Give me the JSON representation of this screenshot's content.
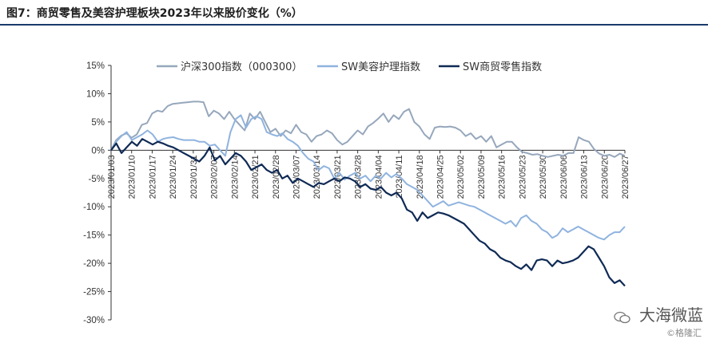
{
  "title": "图7：商贸零售及美容护理板块2023年以来股价变化（%）",
  "watermark": {
    "name": "大海微蓝",
    "sub": "©格隆汇"
  },
  "chart_data": {
    "type": "line",
    "ylim": [
      -30,
      15
    ],
    "yticks": [
      "15%",
      "10%",
      "5%",
      "0%",
      "-5%",
      "-10%",
      "-15%",
      "-20%",
      "-25%",
      "-30%"
    ],
    "ytick_values": [
      15,
      10,
      5,
      0,
      -5,
      -10,
      -15,
      -20,
      -25,
      -30
    ],
    "xticks": [
      "2023/01/03",
      "2023/01/10",
      "2023/01/17",
      "2023/01/24",
      "2023/01/31",
      "2023/02/07",
      "2023/02/14",
      "2023/02/21",
      "2023/02/28",
      "2023/03/07",
      "2023/03/14",
      "2023/03/21",
      "2023/03/28",
      "2023/04/04",
      "2023/04/11",
      "2023/04/18",
      "2023/04/25",
      "2023/05/02",
      "2023/05/09",
      "2023/05/16",
      "2023/05/23",
      "2023/05/30",
      "2023/06/06",
      "2023/06/13",
      "2023/06/20",
      "2023/06/27"
    ],
    "legend_position": "top",
    "grid": false,
    "series": [
      {
        "name": "沪深300指数（000300）",
        "color": "#96a7bc",
        "values": [
          0.0,
          1.8,
          2.6,
          3.0,
          2.2,
          2.8,
          4.5,
          4.8,
          6.5,
          7.0,
          6.8,
          7.8,
          8.2,
          8.3,
          8.4,
          8.5,
          8.6,
          8.6,
          8.5,
          6.0,
          7.0,
          6.5,
          5.5,
          6.8,
          5.5,
          4.5,
          3.5,
          6.5,
          5.5,
          6.8,
          5.0,
          3.2,
          3.8,
          2.5,
          3.5,
          3.0,
          4.5,
          3.2,
          2.8,
          1.5,
          2.5,
          2.8,
          3.5,
          3.0,
          1.8,
          1.0,
          1.5,
          2.5,
          3.5,
          2.8,
          4.2,
          4.8,
          5.6,
          6.5,
          5.0,
          6.2,
          5.5,
          6.8,
          7.3,
          5.0,
          4.2,
          2.8,
          2.0,
          4.0,
          4.2,
          4.1,
          4.2,
          4.0,
          3.5,
          2.5,
          3.0,
          2.0,
          2.5,
          1.5,
          2.5,
          0.5,
          1.0,
          1.5,
          1.5,
          0.5,
          -0.3,
          -0.5,
          -0.8,
          -0.7,
          -1.0,
          -1.2,
          -1.0,
          -0.8,
          -1.0,
          -0.5,
          -0.5,
          2.3,
          1.8,
          1.5,
          0.2,
          -0.6,
          -1.0,
          -0.8,
          -1.2,
          -0.6,
          -1.0
        ]
      },
      {
        "name": "SW美容护理指数",
        "color": "#8fb3df",
        "values": [
          0.0,
          1.5,
          2.5,
          3.2,
          1.8,
          2.3,
          2.8,
          3.5,
          2.8,
          1.5,
          2.0,
          2.2,
          2.3,
          2.0,
          1.8,
          1.8,
          1.8,
          1.5,
          1.5,
          0.8,
          1.0,
          0.0,
          -1.0,
          3.2,
          5.5,
          6.2,
          4.0,
          5.5,
          6.0,
          5.5,
          3.2,
          2.8,
          2.5,
          3.0,
          2.0,
          1.5,
          0.8,
          -0.5,
          -1.5,
          -2.0,
          -3.5,
          -2.8,
          -3.2,
          -5.0,
          -4.0,
          -5.2,
          -4.5,
          -4.0,
          -5.0,
          -4.5,
          -5.5,
          -4.5,
          -5.0,
          -4.0,
          -4.8,
          -4.2,
          -5.0,
          -6.0,
          -6.5,
          -7.0,
          -8.0,
          -9.0,
          -10.0,
          -9.5,
          -9.0,
          -9.8,
          -9.5,
          -9.2,
          -9.5,
          -9.8,
          -10.0,
          -10.5,
          -11.0,
          -11.5,
          -12.0,
          -12.5,
          -13.0,
          -12.5,
          -13.5,
          -12.0,
          -11.5,
          -12.5,
          -13.0,
          -14.0,
          -14.5,
          -15.5,
          -15.0,
          -13.8,
          -14.5,
          -14.0,
          -13.5,
          -14.0,
          -14.5,
          -15.0,
          -15.5,
          -15.8,
          -15.0,
          -14.5,
          -14.5,
          -13.5
        ]
      },
      {
        "name": "SW商贸零售指数",
        "color": "#0f2a55",
        "values": [
          0.0,
          1.2,
          -0.5,
          0.5,
          1.5,
          0.8,
          2.0,
          1.5,
          1.0,
          1.5,
          1.2,
          0.8,
          0.5,
          0.0,
          -0.5,
          -1.0,
          -1.5,
          -2.0,
          -1.0,
          0.5,
          -1.8,
          -1.0,
          -2.5,
          -1.5,
          -0.5,
          -1.0,
          -2.0,
          -3.5,
          -3.0,
          -2.5,
          -3.5,
          -4.0,
          -3.5,
          -5.0,
          -4.5,
          -5.8,
          -5.0,
          -5.5,
          -6.0,
          -6.5,
          -5.8,
          -6.0,
          -5.5,
          -5.0,
          -5.5,
          -4.8,
          -5.0,
          -5.5,
          -6.5,
          -6.0,
          -6.8,
          -7.0,
          -6.5,
          -7.5,
          -8.0,
          -7.5,
          -8.5,
          -10.5,
          -11.0,
          -12.5,
          -11.0,
          -12.0,
          -11.5,
          -11.0,
          -11.2,
          -11.5,
          -12.0,
          -12.5,
          -13.0,
          -14.0,
          -15.0,
          -16.0,
          -16.5,
          -17.5,
          -18.0,
          -19.0,
          -19.5,
          -19.8,
          -20.5,
          -21.0,
          -20.2,
          -21.2,
          -19.5,
          -19.3,
          -19.5,
          -20.5,
          -19.5,
          -20.0,
          -19.8,
          -19.5,
          -19.0,
          -18.0,
          -17.0,
          -17.5,
          -19.0,
          -20.5,
          -22.5,
          -23.5,
          -23.0,
          -24.0
        ]
      }
    ]
  }
}
